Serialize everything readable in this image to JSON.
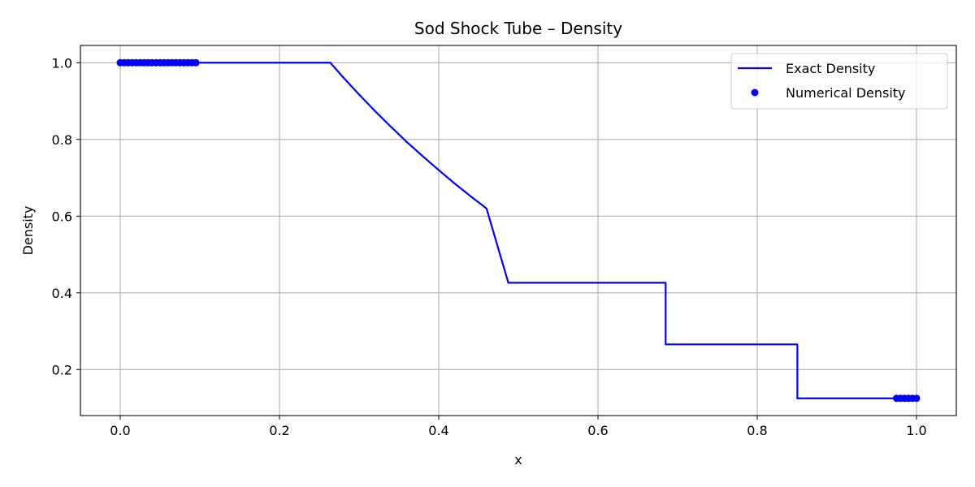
{
  "chart_data": {
    "type": "line",
    "title": "Sod Shock Tube – Density",
    "xlabel": "x",
    "ylabel": "Density",
    "xlim": [
      -0.05,
      1.05
    ],
    "ylim": [
      0.08,
      1.045
    ],
    "xticks": [
      0.0,
      0.2,
      0.4,
      0.6,
      0.8,
      1.0
    ],
    "xtick_labels": [
      "0.0",
      "0.2",
      "0.4",
      "0.6",
      "0.8",
      "1.0"
    ],
    "yticks": [
      0.2,
      0.4,
      0.6,
      0.8,
      1.0
    ],
    "ytick_labels": [
      "0.2",
      "0.4",
      "0.6",
      "0.8",
      "1.0"
    ],
    "grid": true,
    "legend_position": "top-right",
    "series": [
      {
        "name": "Exact Density",
        "kind": "line",
        "color": "#0000ff",
        "x": [
          0.0,
          0.2638,
          0.28,
          0.3,
          0.32,
          0.34,
          0.36,
          0.38,
          0.4,
          0.42,
          0.44,
          0.46,
          0.4874,
          0.685,
          0.685,
          0.8504,
          0.8504,
          1.0
        ],
        "y": [
          1.0,
          1.0,
          0.962,
          0.917,
          0.874,
          0.833,
          0.793,
          0.756,
          0.72,
          0.685,
          0.652,
          0.62,
          0.4263,
          0.4263,
          0.2656,
          0.2656,
          0.125,
          0.125
        ]
      },
      {
        "name": "Numerical Density",
        "kind": "scatter",
        "color": "#0000ff",
        "x": [
          0.0,
          0.005,
          0.01,
          0.015,
          0.02,
          0.025,
          0.03,
          0.035,
          0.04,
          0.045,
          0.05,
          0.055,
          0.06,
          0.065,
          0.07,
          0.075,
          0.08,
          0.085,
          0.09,
          0.095,
          0.975,
          0.98,
          0.985,
          0.99,
          0.995,
          1.0
        ],
        "y": [
          1.0,
          1.0,
          1.0,
          1.0,
          1.0,
          1.0,
          1.0,
          1.0,
          1.0,
          1.0,
          1.0,
          1.0,
          1.0,
          1.0,
          1.0,
          1.0,
          1.0,
          1.0,
          1.0,
          1.0,
          0.125,
          0.125,
          0.125,
          0.125,
          0.125,
          0.125
        ]
      }
    ]
  }
}
